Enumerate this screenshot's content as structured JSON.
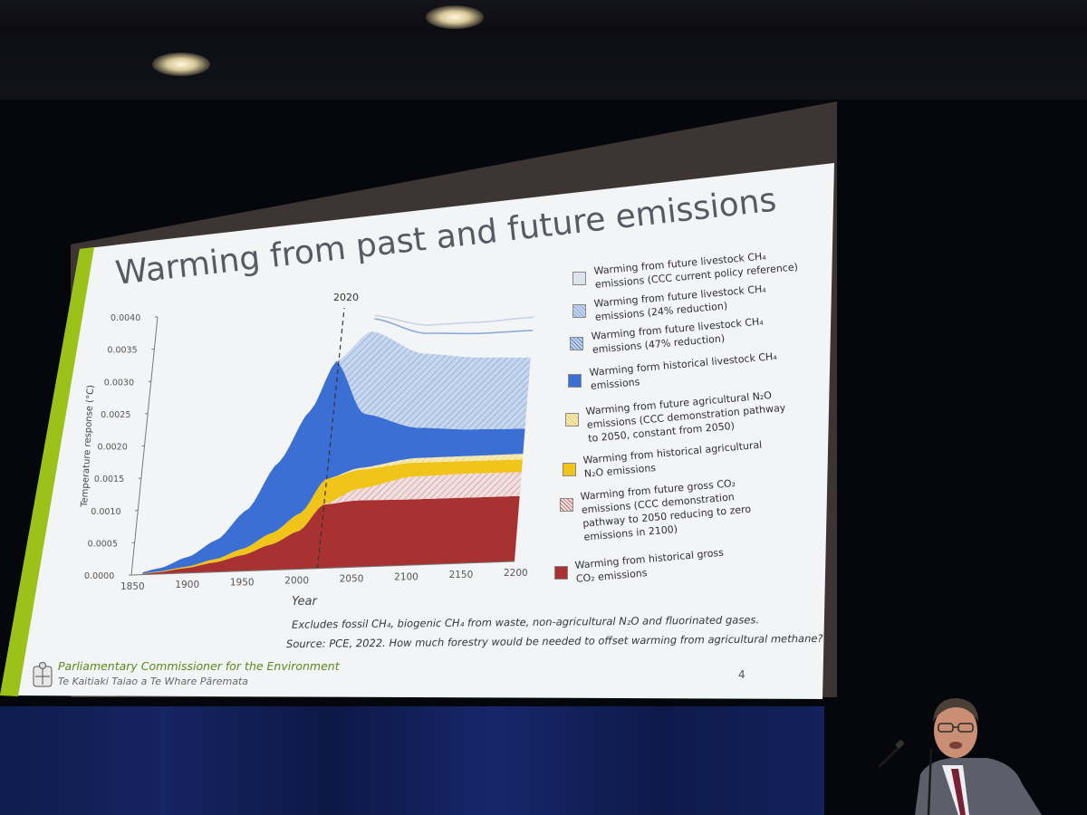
{
  "slide": {
    "title": "Warming from past and future emissions",
    "footnote_line1": "Excludes fossil CH₄, biogenic CH₄ from waste, non-agricultural N₂O and fluorinated gases.",
    "footnote_line2": "Source: PCE, 2022. How much forestry would be needed to offset warming from agricultural methane?",
    "org_name": "Parliamentary Commissioner for the Environment",
    "org_subtitle": "Te Kaitiaki Taiao a Te Whare Pāremata",
    "page_number": "4"
  },
  "colors": {
    "co2_hist": "#a83232",
    "co2_future": "#e8c4c4",
    "n2o_hist": "#f0c419",
    "n2o_future": "#f4e6a0",
    "ch4_hist": "#3b6fd4",
    "ch4_future_47": "#c6d6ee",
    "ch4_future_24": "#b9cde8",
    "ch4_future_ccc": "#dde4ef",
    "green_band": "#9cc21a"
  },
  "chart_data": {
    "type": "area",
    "title": "Warming from past and future emissions",
    "xlabel": "Year",
    "ylabel": "Temperature response (°C)",
    "xlim": [
      1850,
      2200
    ],
    "ylim": [
      0,
      0.004
    ],
    "x_ticks": [
      "1850",
      "1900",
      "1950",
      "2000",
      "2050",
      "2100",
      "2150",
      "2200"
    ],
    "y_ticks": [
      "0.0000",
      "0.0005",
      "0.0010",
      "0.0015",
      "0.0020",
      "0.0025",
      "0.0030",
      "0.0035",
      "0.0040"
    ],
    "annotation": {
      "x": 2020,
      "label": "2020"
    },
    "x": [
      1850,
      1875,
      1900,
      1925,
      1950,
      1975,
      2000,
      2020,
      2050,
      2100,
      2150,
      2200
    ],
    "series": [
      {
        "name": "Warming from historical gross CO₂ emissions",
        "key": "co2_hist",
        "values": [
          0,
          3e-05,
          8e-05,
          0.00015,
          0.00025,
          0.0004,
          0.0006,
          0.001,
          0.00105,
          0.00104,
          0.00104,
          0.00104
        ]
      },
      {
        "name": "Warming from future gross CO₂ emissions  (CCC demonstration pathway to 2050 reducing to zero emissions in 2100)",
        "key": "co2_future",
        "values": [
          0,
          0,
          0,
          0,
          0,
          0,
          0,
          0,
          0.00018,
          0.00036,
          0.00038,
          0.00038
        ]
      },
      {
        "name": "Warming from historical agricultural N₂O emissions",
        "key": "n2o_hist",
        "values": [
          0,
          1e-05,
          2e-05,
          5e-05,
          0.0001,
          0.00018,
          0.00028,
          0.0004,
          0.0003,
          0.00022,
          0.0002,
          0.0002
        ]
      },
      {
        "name": "Warming from future agricultural N₂O emissions (CCC demonstration pathway to 2050, constant from 2050)",
        "key": "n2o_future",
        "values": [
          0,
          0,
          0,
          0,
          0,
          0,
          0,
          0,
          3e-05,
          7e-05,
          8e-05,
          9e-05
        ]
      },
      {
        "name": "Warming form historical livestock CH₄ emissions",
        "key": "ch4_hist",
        "values": [
          0,
          5e-05,
          0.00015,
          0.0003,
          0.0006,
          0.0011,
          0.0016,
          0.00185,
          0.00085,
          0.00048,
          0.00042,
          0.0004
        ]
      },
      {
        "name": "Warming from future livestock CH₄ emissions (47% reduction)",
        "key": "ch4_future_47",
        "values": [
          0,
          0,
          0,
          0,
          0,
          0,
          0,
          0,
          0.0013,
          0.00117,
          0.00114,
          0.00113
        ]
      },
      {
        "name": "Warming from future livestock CH₄ emissions (24% reduction)",
        "key": "ch4_future_24",
        "values": [
          0,
          0,
          0,
          0,
          0,
          0,
          0,
          0,
          0.0002,
          0.00032,
          0.00038,
          0.00043
        ]
      },
      {
        "name": "Warming from future livestock CH₄ emissions (CCC current policy reference)",
        "key": "ch4_future_ccc",
        "values": [
          0,
          0,
          0,
          0,
          0,
          0,
          0,
          0,
          5e-05,
          0.00013,
          0.00018,
          0.00021
        ]
      }
    ],
    "legend_placement": "right",
    "grid": false
  },
  "legend": [
    {
      "key": "ch4_future_ccc",
      "line1": "Warming from future livestock CH₄",
      "line2": "emissions (CCC current policy reference)",
      "line3": ""
    },
    {
      "key": "ch4_future_24",
      "line1": "Warming from future livestock CH₄",
      "line2": "emissions (24% reduction)",
      "line3": ""
    },
    {
      "key": "ch4_future_47",
      "line1": "Warming from future livestock CH₄",
      "line2": "emissions (47% reduction)",
      "line3": ""
    },
    {
      "key": "ch4_hist",
      "line1": "Warming form historical livestock CH₄",
      "line2": "emissions",
      "line3": ""
    },
    {
      "key": "n2o_future",
      "line1": "Warming from future agricultural N₂O",
      "line2": "emissions (CCC demonstration pathway",
      "line3": "to 2050, constant from 2050)"
    },
    {
      "key": "n2o_hist",
      "line1": "Warming from historical agricultural",
      "line2": "N₂O emissions",
      "line3": ""
    },
    {
      "key": "co2_future",
      "line1": "Warming from future gross CO₂",
      "line2": "emissions  (CCC demonstration",
      "line3": "pathway to 2050 reducing to zero"
    },
    {
      "key": "co2_hist",
      "line1": "Warming from historical gross",
      "line2": "CO₂ emissions",
      "line3": ""
    }
  ],
  "legend_extra": {
    "co2_future_line4": "emissions in 2100)"
  }
}
